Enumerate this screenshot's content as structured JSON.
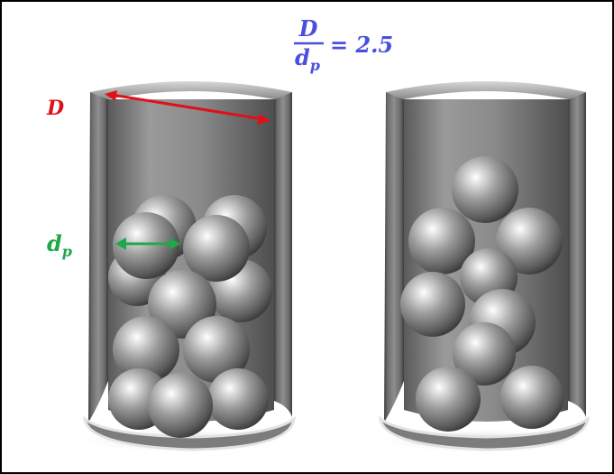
{
  "formula": {
    "numerator": "D",
    "denominator_base": "d",
    "denominator_sub": "p",
    "equals": "= 2.5"
  },
  "labels": {
    "tube_diameter": "D",
    "particle_base": "d",
    "particle_sub": "p"
  },
  "colors": {
    "tube_diameter": "#e0101a",
    "particle_diameter": "#1ea84a",
    "formula": "#4a4fe0",
    "border": "#000000"
  }
}
